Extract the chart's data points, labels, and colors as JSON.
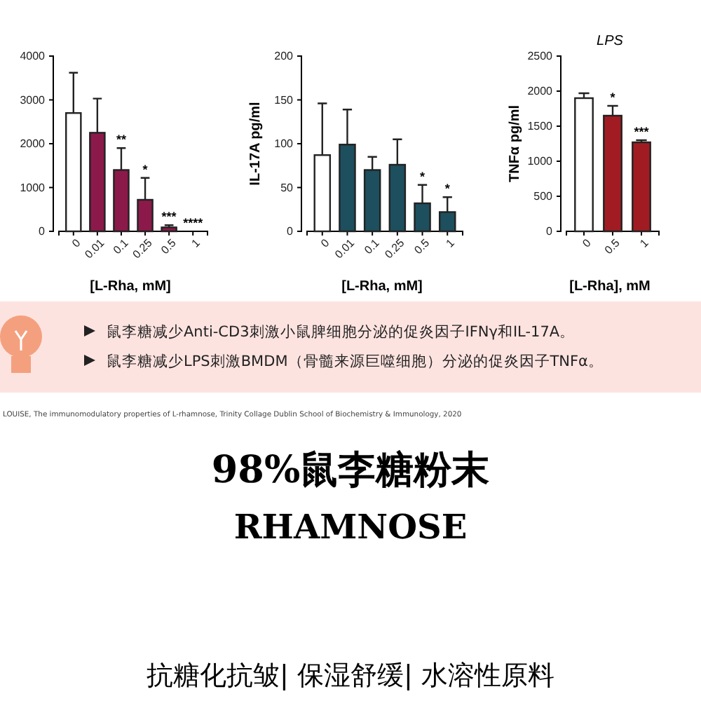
{
  "chart_data": [
    {
      "type": "bar",
      "categories": [
        "0",
        "0.01",
        "0.1",
        "0.25",
        "0.5",
        "1"
      ],
      "values": [
        2700,
        2250,
        1400,
        720,
        90,
        0
      ],
      "colors": [
        "#ffffff",
        "#8b1a4a",
        "#8b1a4a",
        "#8b1a4a",
        "#8b1a4a",
        "#8b1a4a"
      ],
      "errors": [
        [
          2700,
          3620
        ],
        [
          2250,
          3030
        ],
        [
          1400,
          1900
        ],
        [
          720,
          1220
        ],
        [
          90,
          140
        ],
        null
      ],
      "xlabel": "[L-Rha, mM]",
      "ylim": [
        0,
        4000
      ],
      "yticks": [
        0,
        1000,
        2000,
        3000,
        4000
      ],
      "annotations": [
        {
          "text": "**",
          "x": "0.1",
          "y": 1900
        },
        {
          "text": "*",
          "x": "0.25",
          "y": 1220
        },
        {
          "text": "***",
          "x": "0.5",
          "y": 140
        },
        {
          "text": "****",
          "x": "1",
          "y": 0
        }
      ]
    },
    {
      "type": "bar",
      "categories": [
        "0",
        "0.01",
        "0.1",
        "0.25",
        "0.5",
        "1"
      ],
      "values": [
        87,
        99,
        70,
        76,
        32,
        22
      ],
      "colors": [
        "#ffffff",
        "#1d4f5e",
        "#1d4f5e",
        "#1d4f5e",
        "#1d4f5e",
        "#1d4f5e"
      ],
      "errors": [
        [
          87,
          146
        ],
        [
          99,
          139
        ],
        [
          70,
          85
        ],
        [
          76,
          105
        ],
        [
          32,
          53
        ],
        [
          22,
          39
        ]
      ],
      "xlabel": "[L-Rha, mM]",
      "ylabel": "IL-17A pg/ml",
      "ylim": [
        0,
        200
      ],
      "yticks": [
        0,
        50,
        100,
        150,
        200
      ],
      "annotations": [
        {
          "text": "*",
          "x": "0.5",
          "y": 53
        },
        {
          "text": "*",
          "x": "1",
          "y": 39
        }
      ]
    },
    {
      "type": "bar",
      "title": "LPS",
      "categories": [
        "0",
        "0.5",
        "1"
      ],
      "values": [
        1900,
        1650,
        1270
      ],
      "colors": [
        "#ffffff",
        "#a11c22",
        "#a11c22"
      ],
      "errors": [
        [
          1900,
          1970
        ],
        [
          1650,
          1790
        ],
        [
          1270,
          1300
        ]
      ],
      "xlabel": "[L-Rha], mM",
      "ylabel": "TNFα pg/ml",
      "ylim": [
        0,
        2500
      ],
      "yticks": [
        0,
        500,
        1000,
        1500,
        2000,
        2500
      ],
      "annotations": [
        {
          "text": "*",
          "x": "0.5",
          "y": 1790
        },
        {
          "text": "***",
          "x": "1",
          "y": 1300
        }
      ]
    },
    {
      "type": "other",
      "title": "98%鼠李糖粉末",
      "subtitle": "RHAMNOSE",
      "annotations": [
        "鼠李糖减少Anti-CD3刺激小鼠脾细胞分泌的促炎因子IFNγ和IL-17A。",
        "鼠李糖减少LPS刺激BMDM（骨髓来源巨噬细胞）分泌的促炎因子TNFα。",
        "LOUISE, The immunomodulatory properties of L-rhamnose, Trinity Collage Dublin School of Biochemistry & Immunology, 2020",
        "抗糖化抗皱| 保湿舒缓| 水溶性原料"
      ]
    }
  ]
}
